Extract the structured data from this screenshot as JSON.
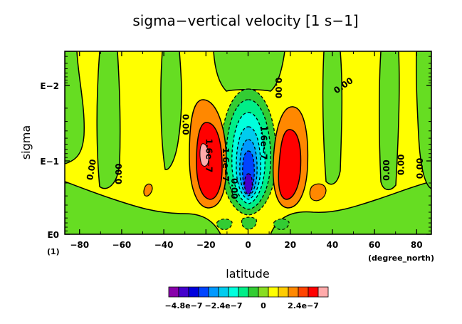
{
  "chart_data": {
    "type": "heatmap",
    "title": "sigma−vertical velocity [1 s−1]",
    "xlabel": "latitude",
    "ylabel": "sigma",
    "x_unit_label": "(degree_north)",
    "y_unit_label": "(1)",
    "xlim": [
      -87,
      87
    ],
    "x_ticks": [
      -80,
      -60,
      -40,
      -20,
      0,
      20,
      40,
      60,
      80
    ],
    "x_tick_labels": [
      "−80",
      "−60",
      "−40",
      "−20",
      "0",
      "20",
      "40",
      "60",
      "80"
    ],
    "y_scale": "log-reversed",
    "y_ticks": [
      "E−2",
      "E−1",
      "E0"
    ],
    "grid": false,
    "contour_labels": [
      {
        "text": "0.00",
        "lat": -73,
        "sigma_pos": 0.65,
        "rotate": -80
      },
      {
        "text": "0.00",
        "lat": -60,
        "sigma_pos": 0.67,
        "rotate": -90
      },
      {
        "text": "0.00",
        "lat": -31,
        "sigma_pos": 0.4,
        "rotate": 90
      },
      {
        "text": "1.6e−7",
        "lat": -20,
        "sigma_pos": 0.57,
        "rotate": 90
      },
      {
        "text": "−1.6e−7",
        "lat": -12,
        "sigma_pos": 0.6,
        "rotate": 90
      },
      {
        "text": "0.00",
        "lat": -8,
        "sigma_pos": 0.75,
        "rotate": 90
      },
      {
        "text": "0.00",
        "lat": 13,
        "sigma_pos": 0.2,
        "rotate": 90
      },
      {
        "text": "1.6e−7",
        "lat": 6,
        "sigma_pos": 0.5,
        "rotate": 90
      },
      {
        "text": "0.00",
        "lat": 46,
        "sigma_pos": 0.2,
        "rotate": -35
      },
      {
        "text": "0.00",
        "lat": 67,
        "sigma_pos": 0.65,
        "rotate": -90
      },
      {
        "text": "0.00",
        "lat": 74,
        "sigma_pos": 0.62,
        "rotate": -90
      },
      {
        "text": "0.00",
        "lat": 83,
        "sigma_pos": 0.64,
        "rotate": -90
      }
    ],
    "colorbar": {
      "colors": [
        "#8800aa",
        "#4400cc",
        "#0000dd",
        "#0044ff",
        "#0099ff",
        "#00ccee",
        "#00ffdd",
        "#00ee88",
        "#33cc33",
        "#88dd22",
        "#ffff00",
        "#ffcc00",
        "#ff8800",
        "#ff4400",
        "#ff0000",
        "#ffaaaa"
      ],
      "tick_labels": [
        "−4.8e−7",
        "−2.4e−7",
        "0",
        "2.4e−7"
      ]
    },
    "field_description_levels": [
      "negative core near equator",
      "positive lobes near ±15–20",
      "near-zero elsewhere"
    ]
  }
}
